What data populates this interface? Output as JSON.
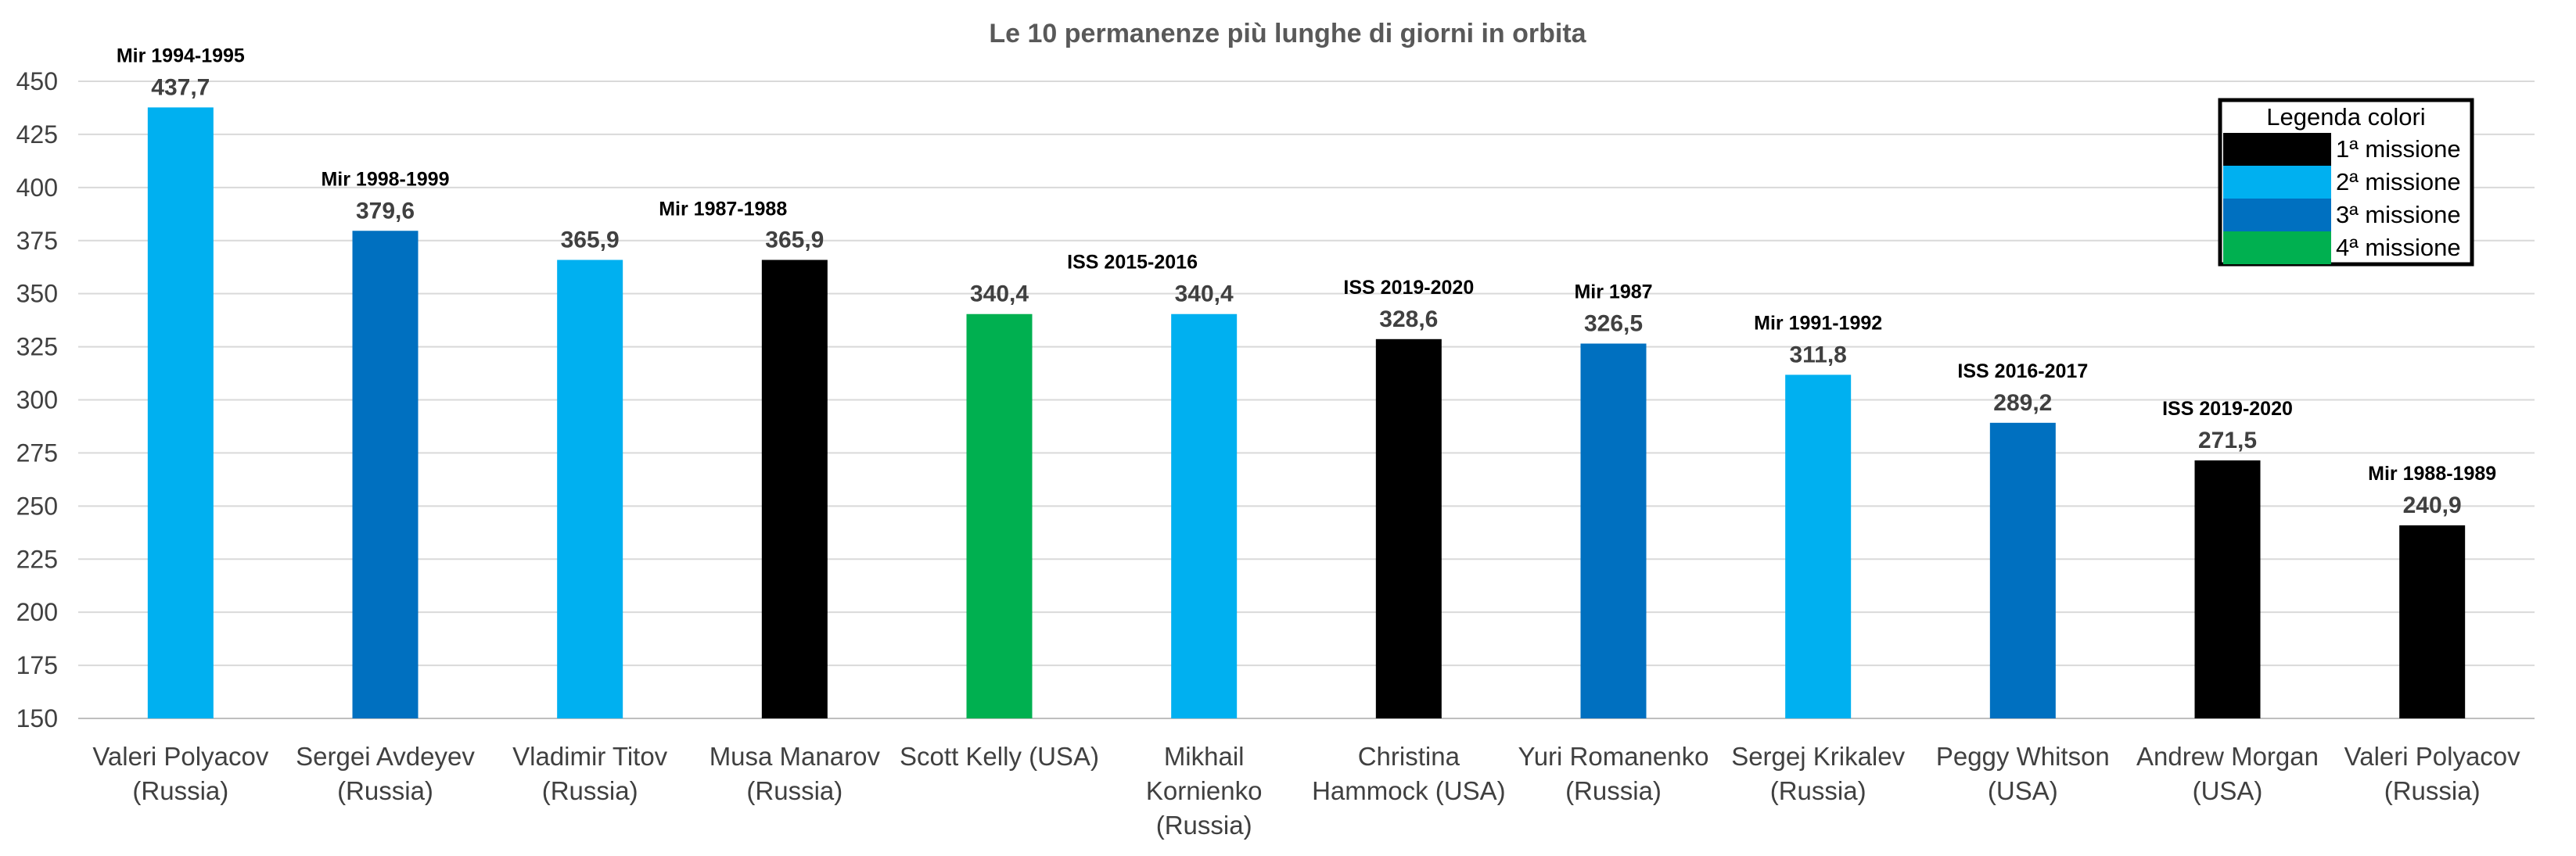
{
  "chart_data": {
    "type": "bar",
    "title": "Le 10 permanenze più lunghe di giorni in orbita",
    "xlabel": "",
    "ylabel": "",
    "ylim": [
      150,
      450
    ],
    "yticks": [
      150,
      175,
      200,
      225,
      250,
      275,
      300,
      325,
      350,
      375,
      400,
      425,
      450
    ],
    "grid": true,
    "categories": [
      [
        "Valeri Polyacov",
        "(Russia)"
      ],
      [
        "Sergei Avdeyev",
        "(Russia)"
      ],
      [
        "Vladimir Titov",
        "(Russia)"
      ],
      [
        "Musa Manarov",
        "(Russia)"
      ],
      [
        "Scott Kelly (USA)"
      ],
      [
        "Mikhail",
        "Kornienko",
        "(Russia)"
      ],
      [
        "Christina",
        "Hammock (USA)"
      ],
      [
        "Yuri Romanenko",
        "(Russia)"
      ],
      [
        "Sergej Krikalev",
        "(Russia)"
      ],
      [
        "Peggy Whitson",
        "(USA)"
      ],
      [
        "Andrew Morgan",
        "(USA)"
      ],
      [
        "Valeri Polyacov",
        "(Russia)"
      ]
    ],
    "values": [
      437.7,
      379.6,
      365.9,
      365.9,
      340.4,
      340.4,
      328.6,
      326.5,
      311.8,
      289.2,
      271.5,
      240.9
    ],
    "value_labels": [
      "437,7",
      "379,6",
      "365,9",
      "365,9",
      "340,4",
      "340,4",
      "328,6",
      "326,5",
      "311,8",
      "289,2",
      "271,5",
      "240,9"
    ],
    "mission_labels": [
      "Mir 1994-1995",
      "Mir 1998-1999",
      "",
      "Mir 1987-1988",
      "",
      "ISS 2015-2016",
      "ISS 2019-2020",
      "Mir 1987",
      "Mir 1991-1992",
      "ISS 2016-2017",
      "ISS 2019-2020",
      "Mir 1988-1989"
    ],
    "mission_number": [
      2,
      3,
      2,
      1,
      4,
      2,
      1,
      3,
      2,
      3,
      1,
      1
    ],
    "colors": {
      "1": "#000000",
      "2": "#00b0f0",
      "3": "#0070c0",
      "4": "#00b050"
    },
    "legend": {
      "title": "Legenda colori",
      "placement": "top-right",
      "entries": [
        {
          "key": "1",
          "label": "1ª missione"
        },
        {
          "key": "2",
          "label": "2ª missione"
        },
        {
          "key": "3",
          "label": "3ª missione"
        },
        {
          "key": "4",
          "label": "4ª missione"
        }
      ]
    }
  }
}
